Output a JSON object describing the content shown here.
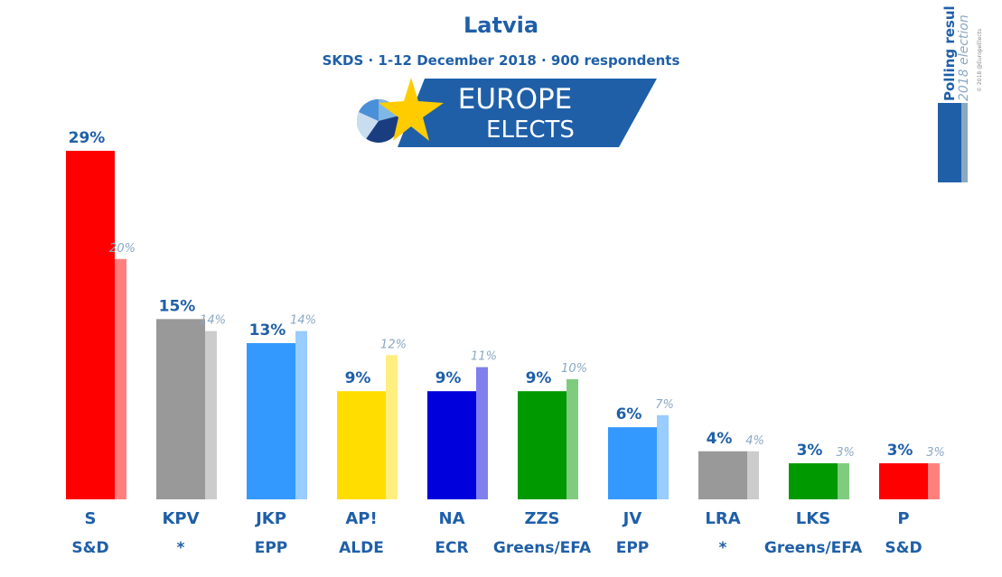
{
  "header": {
    "title": "Latvia",
    "subtitle": "SKDS · 1-12 December 2018 · 900 respondents"
  },
  "logo": {
    "line1": "EUROPE",
    "line2": "ELECTS"
  },
  "badge": {
    "line1": "Polling result",
    "line2": "2018 election",
    "copyright": "© 2018 @EuropeElects"
  },
  "chart_data": {
    "type": "bar",
    "title": "Latvia",
    "subtitle": "SKDS · 1-12 December 2018 · 900 respondents",
    "categories": [
      "S",
      "KPV",
      "JKP",
      "AP!",
      "NA",
      "ZZS",
      "JV",
      "LRA",
      "LKS",
      "P"
    ],
    "groups": [
      "S&D",
      "*",
      "EPP",
      "ALDE",
      "ECR",
      "Greens/EFA",
      "EPP",
      "*",
      "Greens/EFA",
      "S&D"
    ],
    "series": [
      {
        "name": "Polling result",
        "values": [
          29,
          15,
          13,
          9,
          9,
          9,
          6,
          4,
          3,
          3
        ]
      },
      {
        "name": "2018 election",
        "values": [
          20,
          14,
          14,
          12,
          11,
          10,
          7,
          4,
          3,
          3
        ]
      }
    ],
    "value_labels": [
      "29%",
      "15%",
      "13%",
      "9%",
      "9%",
      "9%",
      "6%",
      "4%",
      "3%",
      "3%"
    ],
    "prev_labels": [
      "20%",
      "14%",
      "14%",
      "12%",
      "11%",
      "10%",
      "7%",
      "4%",
      "3%",
      "3%"
    ],
    "colors": [
      "#ff0000",
      "#999999",
      "#3399ff",
      "#ffdd00",
      "#0000dd",
      "#009900",
      "#3399ff",
      "#999999",
      "#009900",
      "#ff0000"
    ],
    "prev_colors": [
      "#ff7f7f",
      "#cccccc",
      "#99ccff",
      "#ffee80",
      "#7f7fee",
      "#7fcc7f",
      "#99ccff",
      "#cccccc",
      "#7fcc7f",
      "#ff7f7f"
    ],
    "ylim": [
      0,
      29
    ]
  }
}
